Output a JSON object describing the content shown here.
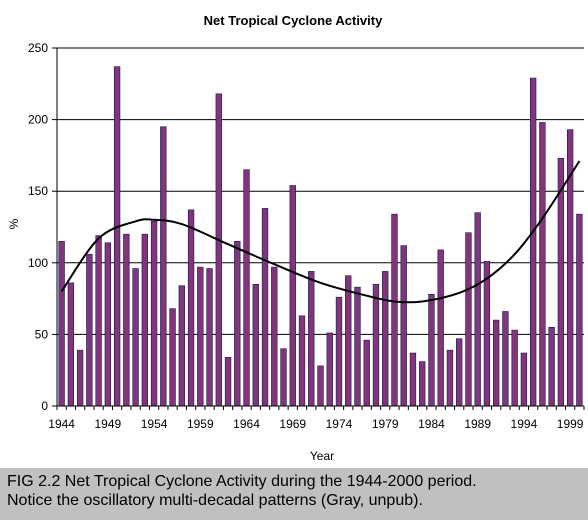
{
  "colors": {
    "bar": "#80357c",
    "bar_edge": "#1a1a4d",
    "trend": "#000000",
    "caption_bg": "#c0c0c0"
  },
  "chart_data": {
    "type": "bar",
    "title": "Net Tropical Cyclone Activity",
    "xlabel": "Year",
    "ylabel": "%",
    "ylim": [
      0,
      250
    ],
    "y_ticks": [
      "0",
      "50",
      "100",
      "150",
      "200",
      "250"
    ],
    "x_tick_labels": [
      "1944",
      "1949",
      "1954",
      "1959",
      "1964",
      "1969",
      "1974",
      "1979",
      "1984",
      "1989",
      "1994",
      "1999"
    ],
    "grid": true,
    "categories": [
      1944,
      1945,
      1946,
      1947,
      1948,
      1949,
      1950,
      1951,
      1952,
      1953,
      1954,
      1955,
      1956,
      1957,
      1958,
      1959,
      1960,
      1961,
      1962,
      1963,
      1964,
      1965,
      1966,
      1967,
      1968,
      1969,
      1970,
      1971,
      1972,
      1973,
      1974,
      1975,
      1976,
      1977,
      1978,
      1979,
      1980,
      1981,
      1982,
      1983,
      1984,
      1985,
      1986,
      1987,
      1988,
      1989,
      1990,
      1991,
      1992,
      1993,
      1994,
      1995,
      1996,
      1997,
      1998,
      1999,
      2000
    ],
    "values": [
      115,
      86,
      39,
      106,
      119,
      114,
      237,
      120,
      96,
      120,
      129,
      195,
      68,
      84,
      137,
      97,
      96,
      218,
      34,
      115,
      165,
      85,
      138,
      97,
      40,
      154,
      63,
      94,
      28,
      51,
      76,
      91,
      83,
      46,
      85,
      94,
      134,
      112,
      37,
      31,
      78,
      109,
      39,
      47,
      121,
      135,
      101,
      60,
      66,
      53,
      37,
      229,
      198,
      55,
      173,
      193,
      134
    ],
    "trend": {
      "type": "polynomial fit",
      "x": [
        1944,
        1948,
        1952,
        1954,
        1957,
        1962,
        1967,
        1972,
        1977,
        1980,
        1983,
        1987,
        1990,
        1993,
        1996,
        2000
      ],
      "y": [
        80,
        117,
        129,
        130,
        127,
        113,
        99,
        86,
        77,
        73,
        73,
        79,
        89,
        106,
        131,
        171
      ]
    }
  },
  "caption": {
    "line1": "FIG 2.2  Net Tropical Cyclone Activity during the 1944-2000 period.",
    "line2": "Notice the oscillatory multi-decadal patterns (Gray, unpub)."
  }
}
